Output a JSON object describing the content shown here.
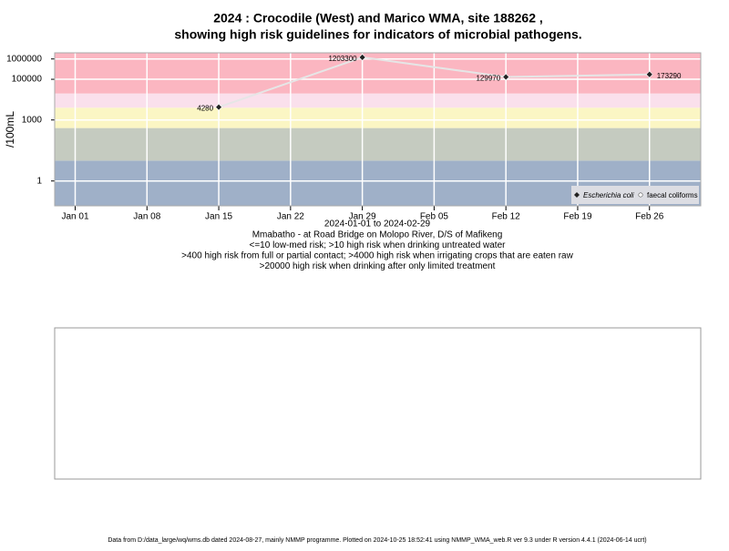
{
  "chart_data": {
    "type": "line",
    "title": "2024 : Crocodile (West) and Marico WMA, site 188262 ,",
    "subtitle": "showing high risk guidelines for indicators of microbial pathogens.",
    "y_label": "/100mL",
    "x_label": "2024-01-01 to 2024-02-29",
    "notes": [
      "Mmabatho - at Road Bridge on Molopo River, D/S of Mafikeng",
      "<=10 low-med risk; >10 high risk when drinking untreated water",
      ">400 high risk from full or partial contact; >4000 high risk when irrigating crops that are eaten raw",
      ">20000 high risk when drinking after only limited treatment"
    ],
    "footer": "Data from D:/data_large/wq/wms.db dated 2024-08-27, mainly NMMP programme. Plotted on 2024-10-25 18:52:41 using NMMP_WMA_web.R ver 9.3 under R version 4.4.1 (2024-06-14 ucrt)",
    "x": [
      "2024-01-15",
      "2024-01-29",
      "2024-02-12",
      "2024-02-26"
    ],
    "series": [
      {
        "name": "Escherichia coli",
        "color": "#222222",
        "values": [
          4280,
          1203300,
          129970,
          173290
        ]
      },
      {
        "name": "faecal coliforms",
        "color": "#ffffff",
        "values": [
          null,
          null,
          null,
          null
        ]
      }
    ],
    "log_scale": true,
    "ylim": [
      0.06,
      2000000
    ],
    "yticks": [
      1,
      1000,
      100000,
      1000000
    ],
    "xlim": [
      "2023-12-30",
      "2024-03-02"
    ],
    "xticks": [
      {
        "value": "2024-01-01",
        "label": "Jan 01"
      },
      {
        "value": "2024-01-08",
        "label": "Jan 08"
      },
      {
        "value": "2024-01-15",
        "label": "Jan 15"
      },
      {
        "value": "2024-01-22",
        "label": "Jan 22"
      },
      {
        "value": "2024-01-29",
        "label": "Jan 29"
      },
      {
        "value": "2024-02-05",
        "label": "Feb 05"
      },
      {
        "value": "2024-02-12",
        "label": "Feb 12"
      },
      {
        "value": "2024-02-19",
        "label": "Feb 19"
      },
      {
        "value": "2024-02-26",
        "label": "Feb 26"
      }
    ],
    "band_breaks": [
      10,
      400,
      4000,
      20000
    ],
    "band_colors": [
      "#9fb0c8",
      "#c5cbc0",
      "#fbf6c4",
      "#fae0ec",
      "#fbb6c1"
    ],
    "grid": true,
    "legend": "bottom-right"
  }
}
